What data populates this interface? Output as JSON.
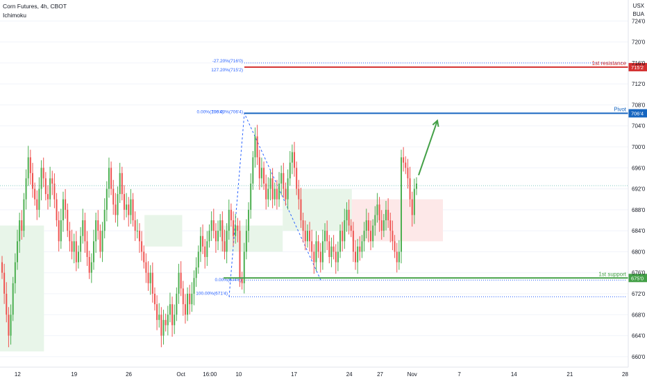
{
  "header": {
    "symbol_line": "Corn Futures, 4h, CBOT",
    "indicator": "Ichimoku"
  },
  "currency": [
    "USX",
    "BUA"
  ],
  "colors": {
    "up": "#26a69a",
    "up_candle": "#4caf50",
    "down": "#ef5350",
    "resistance": "#d32f2f",
    "pivot": "#1565c0",
    "support": "#43a047",
    "fib": "#2962ff",
    "cloud_bull": "#e8f5e9",
    "cloud_bear": "#fde8e8",
    "arrow": "#43a047",
    "grid": "#f0f3fa",
    "axis_text": "#131722"
  },
  "levels": {
    "resistance": {
      "label": "1st resistance",
      "value": 715.2,
      "tag": "715'2"
    },
    "pivot": {
      "label": "Pivot",
      "value": 706.4,
      "tag": "706'4"
    },
    "support": {
      "label": "1st support",
      "value": 675.0,
      "tag": "675'0"
    }
  },
  "fib_labels": {
    "ext_272": "-27.20%(716'0)",
    "ext_1272": "127.20%(715'2)",
    "top": "0.00%(706'4)",
    "top_overlap": "100.00%(706'4)",
    "mid": "0.00%(674'6)",
    "bottom": "100.00%(671'4)"
  },
  "chart_data": {
    "type": "candlestick",
    "title": "Corn Futures, 4h, CBOT",
    "y_ticks": [
      "724'0",
      "720'0",
      "716'0",
      "712'0",
      "708'0",
      "704'0",
      "700'0",
      "696'0",
      "692'0",
      "688'0",
      "684'0",
      "680'0",
      "676'0",
      "672'0",
      "668'0",
      "664'0",
      "660'0"
    ],
    "y_tick_values": [
      724,
      720,
      716,
      712,
      708,
      704,
      700,
      696,
      692,
      688,
      684,
      680,
      676,
      672,
      668,
      664,
      660
    ],
    "ylim": [
      658,
      728
    ],
    "x_ticks": [
      "12",
      "19",
      "26",
      "Oct",
      "16:00",
      "10",
      "17",
      "24",
      "27",
      "Nov",
      "7",
      "14",
      "21",
      "28"
    ],
    "current_price": 692.6,
    "closes": [
      676,
      672,
      668,
      664,
      668,
      674,
      678,
      682,
      686,
      684,
      690,
      694,
      698,
      695,
      692,
      690,
      688,
      692,
      696,
      694,
      691,
      690,
      694,
      693,
      690,
      686,
      682,
      686,
      690,
      688,
      684,
      682,
      680,
      682,
      678,
      680,
      683,
      686,
      682,
      679,
      676,
      678,
      682,
      686,
      684,
      680,
      684,
      688,
      692,
      696,
      692,
      689,
      687,
      691,
      695,
      691,
      688,
      689,
      687,
      690,
      686,
      684,
      684,
      682,
      680,
      678,
      676,
      674,
      676,
      672,
      670,
      667,
      668,
      664,
      667,
      666,
      668,
      670,
      666,
      668,
      672,
      676,
      673,
      670,
      668,
      672,
      670,
      672,
      675,
      677,
      680,
      683,
      681,
      679,
      682,
      684,
      686,
      684,
      682,
      684,
      686,
      682,
      680,
      684,
      688,
      686,
      683,
      685,
      684,
      675,
      674,
      680,
      684,
      688,
      693,
      698,
      702,
      698,
      694,
      696,
      693,
      690,
      692,
      694,
      690,
      692,
      690,
      693,
      695,
      692,
      690,
      694,
      697,
      699,
      696,
      692,
      690,
      686,
      684,
      682,
      684,
      682,
      680,
      678,
      682,
      680,
      678,
      682,
      684,
      682,
      679,
      681,
      680,
      678,
      680,
      684,
      682,
      686,
      688,
      685,
      684,
      680,
      678,
      681,
      680,
      682,
      684,
      686,
      684,
      682,
      685,
      687,
      689,
      686,
      684,
      686,
      688,
      686,
      684,
      682,
      680,
      678,
      680,
      698,
      697,
      696,
      694,
      690,
      687,
      692,
      693
    ],
    "ichimoku_cloud": [
      {
        "x0": 0.0,
        "x1": 0.07,
        "top": 685,
        "bottom": 661,
        "bias": "bull"
      },
      {
        "x0": 0.23,
        "x1": 0.29,
        "top": 687,
        "bottom": 681,
        "bias": "bull"
      },
      {
        "x0": 0.35,
        "x1": 0.45,
        "top": 685,
        "bottom": 680,
        "bias": "bull"
      },
      {
        "x0": 0.45,
        "x1": 0.56,
        "top": 692,
        "bottom": 684,
        "bias": "bull"
      },
      {
        "x0": 0.56,
        "x1": 0.705,
        "top": 690,
        "bottom": 682,
        "bias": "bear"
      }
    ]
  }
}
